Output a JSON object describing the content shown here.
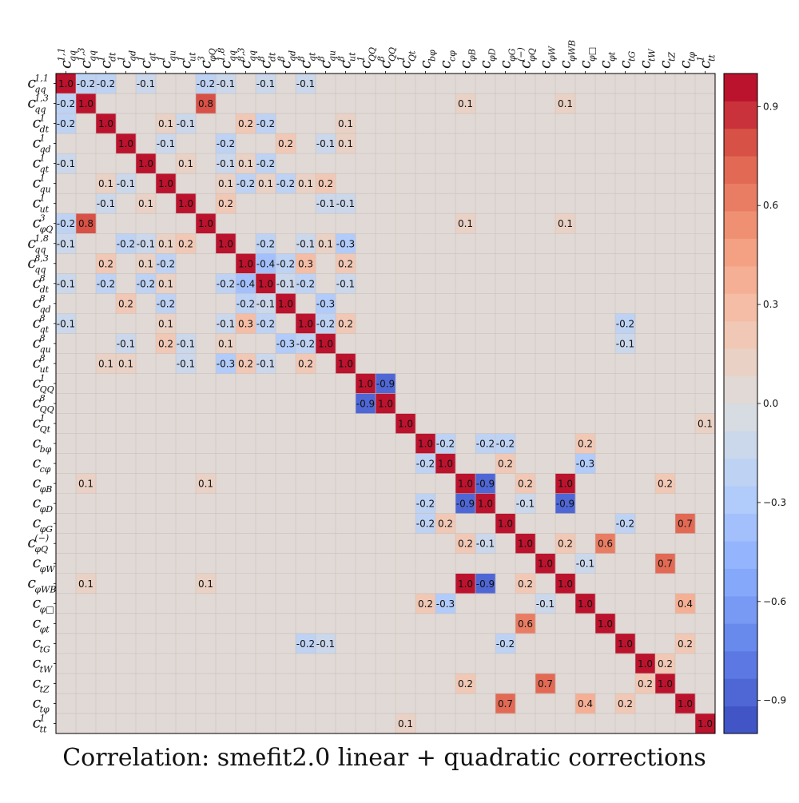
{
  "chart_data": {
    "type": "heatmap",
    "title": "Correlation: smefit2.0 linear + quadratic corrections",
    "labels": [
      {
        "base": "c",
        "sub": "qq",
        "sup": "1,1"
      },
      {
        "base": "c",
        "sub": "qq",
        "sup": "1,3"
      },
      {
        "base": "c",
        "sub": "dt",
        "sup": "1"
      },
      {
        "base": "c",
        "sub": "qd",
        "sup": "1"
      },
      {
        "base": "c",
        "sub": "qt",
        "sup": "1"
      },
      {
        "base": "c",
        "sub": "qu",
        "sup": "1"
      },
      {
        "base": "c",
        "sub": "ut",
        "sup": "1"
      },
      {
        "base": "c",
        "sub": "φQ",
        "sup": "3"
      },
      {
        "base": "c",
        "sub": "qq",
        "sup": "1,8"
      },
      {
        "base": "c",
        "sub": "qq",
        "sup": "8,3"
      },
      {
        "base": "c",
        "sub": "dt",
        "sup": "8"
      },
      {
        "base": "c",
        "sub": "qd",
        "sup": "8"
      },
      {
        "base": "c",
        "sub": "qt",
        "sup": "8"
      },
      {
        "base": "c",
        "sub": "qu",
        "sup": "8"
      },
      {
        "base": "c",
        "sub": "ut",
        "sup": "8"
      },
      {
        "base": "c",
        "sub": "QQ",
        "sup": "1"
      },
      {
        "base": "c",
        "sub": "QQ",
        "sup": "8"
      },
      {
        "base": "c",
        "sub": "Qt",
        "sup": "1"
      },
      {
        "base": "c",
        "sub": "bφ",
        "sup": ""
      },
      {
        "base": "c",
        "sub": "cφ",
        "sup": ""
      },
      {
        "base": "c",
        "sub": "φB",
        "sup": ""
      },
      {
        "base": "c",
        "sub": "φD",
        "sup": ""
      },
      {
        "base": "c",
        "sub": "φG",
        "sup": ""
      },
      {
        "base": "c",
        "sub": "φQ",
        "sup": "(−)"
      },
      {
        "base": "c",
        "sub": "φW",
        "sup": ""
      },
      {
        "base": "c",
        "sub": "φWB",
        "sup": ""
      },
      {
        "base": "c",
        "sub": "φ□",
        "sup": ""
      },
      {
        "base": "c",
        "sub": "φt",
        "sup": ""
      },
      {
        "base": "c",
        "sub": "tG",
        "sup": ""
      },
      {
        "base": "c",
        "sub": "tW",
        "sup": ""
      },
      {
        "base": "c",
        "sub": "tZ",
        "sup": ""
      },
      {
        "base": "c",
        "sub": "tφ",
        "sup": ""
      },
      {
        "base": "c",
        "sub": "tt",
        "sup": "1"
      }
    ],
    "cells": [
      [
        0,
        0,
        1.0
      ],
      [
        0,
        1,
        -0.2
      ],
      [
        0,
        2,
        -0.2
      ],
      [
        0,
        4,
        -0.1
      ],
      [
        0,
        7,
        -0.2
      ],
      [
        0,
        8,
        -0.1
      ],
      [
        0,
        10,
        -0.1
      ],
      [
        0,
        12,
        -0.1
      ],
      [
        1,
        0,
        -0.2
      ],
      [
        1,
        1,
        1.0
      ],
      [
        1,
        7,
        0.8
      ],
      [
        1,
        20,
        0.1
      ],
      [
        1,
        25,
        0.1
      ],
      [
        2,
        0,
        -0.2
      ],
      [
        2,
        2,
        1.0
      ],
      [
        2,
        5,
        0.1
      ],
      [
        2,
        6,
        -0.1
      ],
      [
        2,
        9,
        0.2
      ],
      [
        2,
        10,
        -0.2
      ],
      [
        2,
        14,
        0.1
      ],
      [
        3,
        3,
        1.0
      ],
      [
        3,
        5,
        -0.1
      ],
      [
        3,
        8,
        -0.2
      ],
      [
        3,
        11,
        0.2
      ],
      [
        3,
        13,
        -0.1
      ],
      [
        3,
        14,
        0.1
      ],
      [
        4,
        0,
        -0.1
      ],
      [
        4,
        4,
        1.0
      ],
      [
        4,
        6,
        0.1
      ],
      [
        4,
        8,
        -0.1
      ],
      [
        4,
        9,
        0.1
      ],
      [
        4,
        10,
        -0.2
      ],
      [
        5,
        2,
        0.1
      ],
      [
        5,
        3,
        -0.1
      ],
      [
        5,
        5,
        1.0
      ],
      [
        5,
        8,
        0.1
      ],
      [
        5,
        9,
        -0.2
      ],
      [
        5,
        10,
        0.1
      ],
      [
        5,
        11,
        -0.2
      ],
      [
        5,
        12,
        0.1
      ],
      [
        5,
        13,
        0.2
      ],
      [
        6,
        2,
        -0.1
      ],
      [
        6,
        4,
        0.1
      ],
      [
        6,
        6,
        1.0
      ],
      [
        6,
        8,
        0.2
      ],
      [
        6,
        13,
        -0.1
      ],
      [
        6,
        14,
        -0.1
      ],
      [
        7,
        0,
        -0.2
      ],
      [
        7,
        1,
        0.8
      ],
      [
        7,
        7,
        1.0
      ],
      [
        7,
        20,
        0.1
      ],
      [
        7,
        25,
        0.1
      ],
      [
        8,
        0,
        -0.1
      ],
      [
        8,
        3,
        -0.2
      ],
      [
        8,
        4,
        -0.1
      ],
      [
        8,
        5,
        0.1
      ],
      [
        8,
        6,
        0.2
      ],
      [
        8,
        8,
        1.0
      ],
      [
        8,
        10,
        -0.2
      ],
      [
        8,
        12,
        -0.1
      ],
      [
        8,
        13,
        0.1
      ],
      [
        8,
        14,
        -0.3
      ],
      [
        9,
        2,
        0.2
      ],
      [
        9,
        4,
        0.1
      ],
      [
        9,
        5,
        -0.2
      ],
      [
        9,
        9,
        1.0
      ],
      [
        9,
        10,
        -0.4
      ],
      [
        9,
        11,
        -0.2
      ],
      [
        9,
        12,
        0.3
      ],
      [
        9,
        14,
        0.2
      ],
      [
        10,
        0,
        -0.1
      ],
      [
        10,
        2,
        -0.2
      ],
      [
        10,
        4,
        -0.2
      ],
      [
        10,
        5,
        0.1
      ],
      [
        10,
        8,
        -0.2
      ],
      [
        10,
        9,
        -0.4
      ],
      [
        10,
        10,
        1.0
      ],
      [
        10,
        11,
        -0.1
      ],
      [
        10,
        12,
        -0.2
      ],
      [
        10,
        14,
        -0.1
      ],
      [
        11,
        3,
        0.2
      ],
      [
        11,
        5,
        -0.2
      ],
      [
        11,
        9,
        -0.2
      ],
      [
        11,
        10,
        -0.1
      ],
      [
        11,
        11,
        1.0
      ],
      [
        11,
        13,
        -0.3
      ],
      [
        12,
        0,
        -0.1
      ],
      [
        12,
        5,
        0.1
      ],
      [
        12,
        8,
        -0.1
      ],
      [
        12,
        9,
        0.3
      ],
      [
        12,
        10,
        -0.2
      ],
      [
        12,
        12,
        1.0
      ],
      [
        12,
        13,
        -0.2
      ],
      [
        12,
        14,
        0.2
      ],
      [
        12,
        28,
        -0.2
      ],
      [
        13,
        3,
        -0.1
      ],
      [
        13,
        5,
        0.2
      ],
      [
        13,
        6,
        -0.1
      ],
      [
        13,
        8,
        0.1
      ],
      [
        13,
        11,
        -0.3
      ],
      [
        13,
        12,
        -0.2
      ],
      [
        13,
        13,
        1.0
      ],
      [
        13,
        28,
        -0.1
      ],
      [
        14,
        2,
        0.1
      ],
      [
        14,
        3,
        0.1
      ],
      [
        14,
        6,
        -0.1
      ],
      [
        14,
        8,
        -0.3
      ],
      [
        14,
        9,
        0.2
      ],
      [
        14,
        10,
        -0.1
      ],
      [
        14,
        12,
        0.2
      ],
      [
        14,
        14,
        1.0
      ],
      [
        15,
        15,
        1.0
      ],
      [
        15,
        16,
        -0.9
      ],
      [
        16,
        15,
        -0.9
      ],
      [
        16,
        16,
        1.0
      ],
      [
        17,
        17,
        1.0
      ],
      [
        17,
        32,
        0.1
      ],
      [
        18,
        18,
        1.0
      ],
      [
        18,
        19,
        -0.2
      ],
      [
        18,
        21,
        -0.2
      ],
      [
        18,
        22,
        -0.2
      ],
      [
        18,
        26,
        0.2
      ],
      [
        19,
        18,
        -0.2
      ],
      [
        19,
        19,
        1.0
      ],
      [
        19,
        22,
        0.2
      ],
      [
        19,
        26,
        -0.3
      ],
      [
        20,
        1,
        0.1
      ],
      [
        20,
        7,
        0.1
      ],
      [
        20,
        20,
        1.0
      ],
      [
        20,
        21,
        -0.9
      ],
      [
        20,
        23,
        0.2
      ],
      [
        20,
        25,
        1.0
      ],
      [
        20,
        30,
        0.2
      ],
      [
        21,
        18,
        -0.2
      ],
      [
        21,
        20,
        -0.9
      ],
      [
        21,
        21,
        1.0
      ],
      [
        21,
        23,
        -0.1
      ],
      [
        21,
        25,
        -0.9
      ],
      [
        22,
        18,
        -0.2
      ],
      [
        22,
        19,
        0.2
      ],
      [
        22,
        22,
        1.0
      ],
      [
        22,
        28,
        -0.2
      ],
      [
        22,
        31,
        0.7
      ],
      [
        23,
        20,
        0.2
      ],
      [
        23,
        21,
        -0.1
      ],
      [
        23,
        23,
        1.0
      ],
      [
        23,
        25,
        0.2
      ],
      [
        23,
        27,
        0.6
      ],
      [
        24,
        24,
        1.0
      ],
      [
        24,
        26,
        -0.1
      ],
      [
        24,
        30,
        0.7
      ],
      [
        25,
        1,
        0.1
      ],
      [
        25,
        7,
        0.1
      ],
      [
        25,
        20,
        1.0
      ],
      [
        25,
        21,
        -0.9
      ],
      [
        25,
        23,
        0.2
      ],
      [
        25,
        25,
        1.0
      ],
      [
        26,
        18,
        0.2
      ],
      [
        26,
        19,
        -0.3
      ],
      [
        26,
        24,
        -0.1
      ],
      [
        26,
        26,
        1.0
      ],
      [
        26,
        31,
        0.4
      ],
      [
        27,
        23,
        0.6
      ],
      [
        27,
        27,
        1.0
      ],
      [
        28,
        12,
        -0.2
      ],
      [
        28,
        13,
        -0.1
      ],
      [
        28,
        22,
        -0.2
      ],
      [
        28,
        28,
        1.0
      ],
      [
        28,
        31,
        0.2
      ],
      [
        29,
        29,
        1.0
      ],
      [
        29,
        30,
        0.2
      ],
      [
        30,
        20,
        0.2
      ],
      [
        30,
        24,
        0.7
      ],
      [
        30,
        29,
        0.2
      ],
      [
        30,
        30,
        1.0
      ],
      [
        31,
        22,
        0.7
      ],
      [
        31,
        26,
        0.4
      ],
      [
        31,
        28,
        0.2
      ],
      [
        31,
        31,
        1.0
      ],
      [
        32,
        17,
        0.1
      ],
      [
        32,
        32,
        1.0
      ]
    ],
    "zlim": [
      -1.0,
      1.0
    ],
    "colormap": "coolwarm",
    "levels": 24,
    "colorbar_ticks": [
      {
        "value": 0.9,
        "label": "0.9"
      },
      {
        "value": 0.6,
        "label": "0.6"
      },
      {
        "value": 0.3,
        "label": "0.3"
      },
      {
        "value": 0.0,
        "label": "0.0"
      },
      {
        "value": -0.3,
        "label": "−0.3"
      },
      {
        "value": -0.6,
        "label": "−0.6"
      },
      {
        "value": -0.9,
        "label": "−0.9"
      }
    ],
    "grid": true
  }
}
